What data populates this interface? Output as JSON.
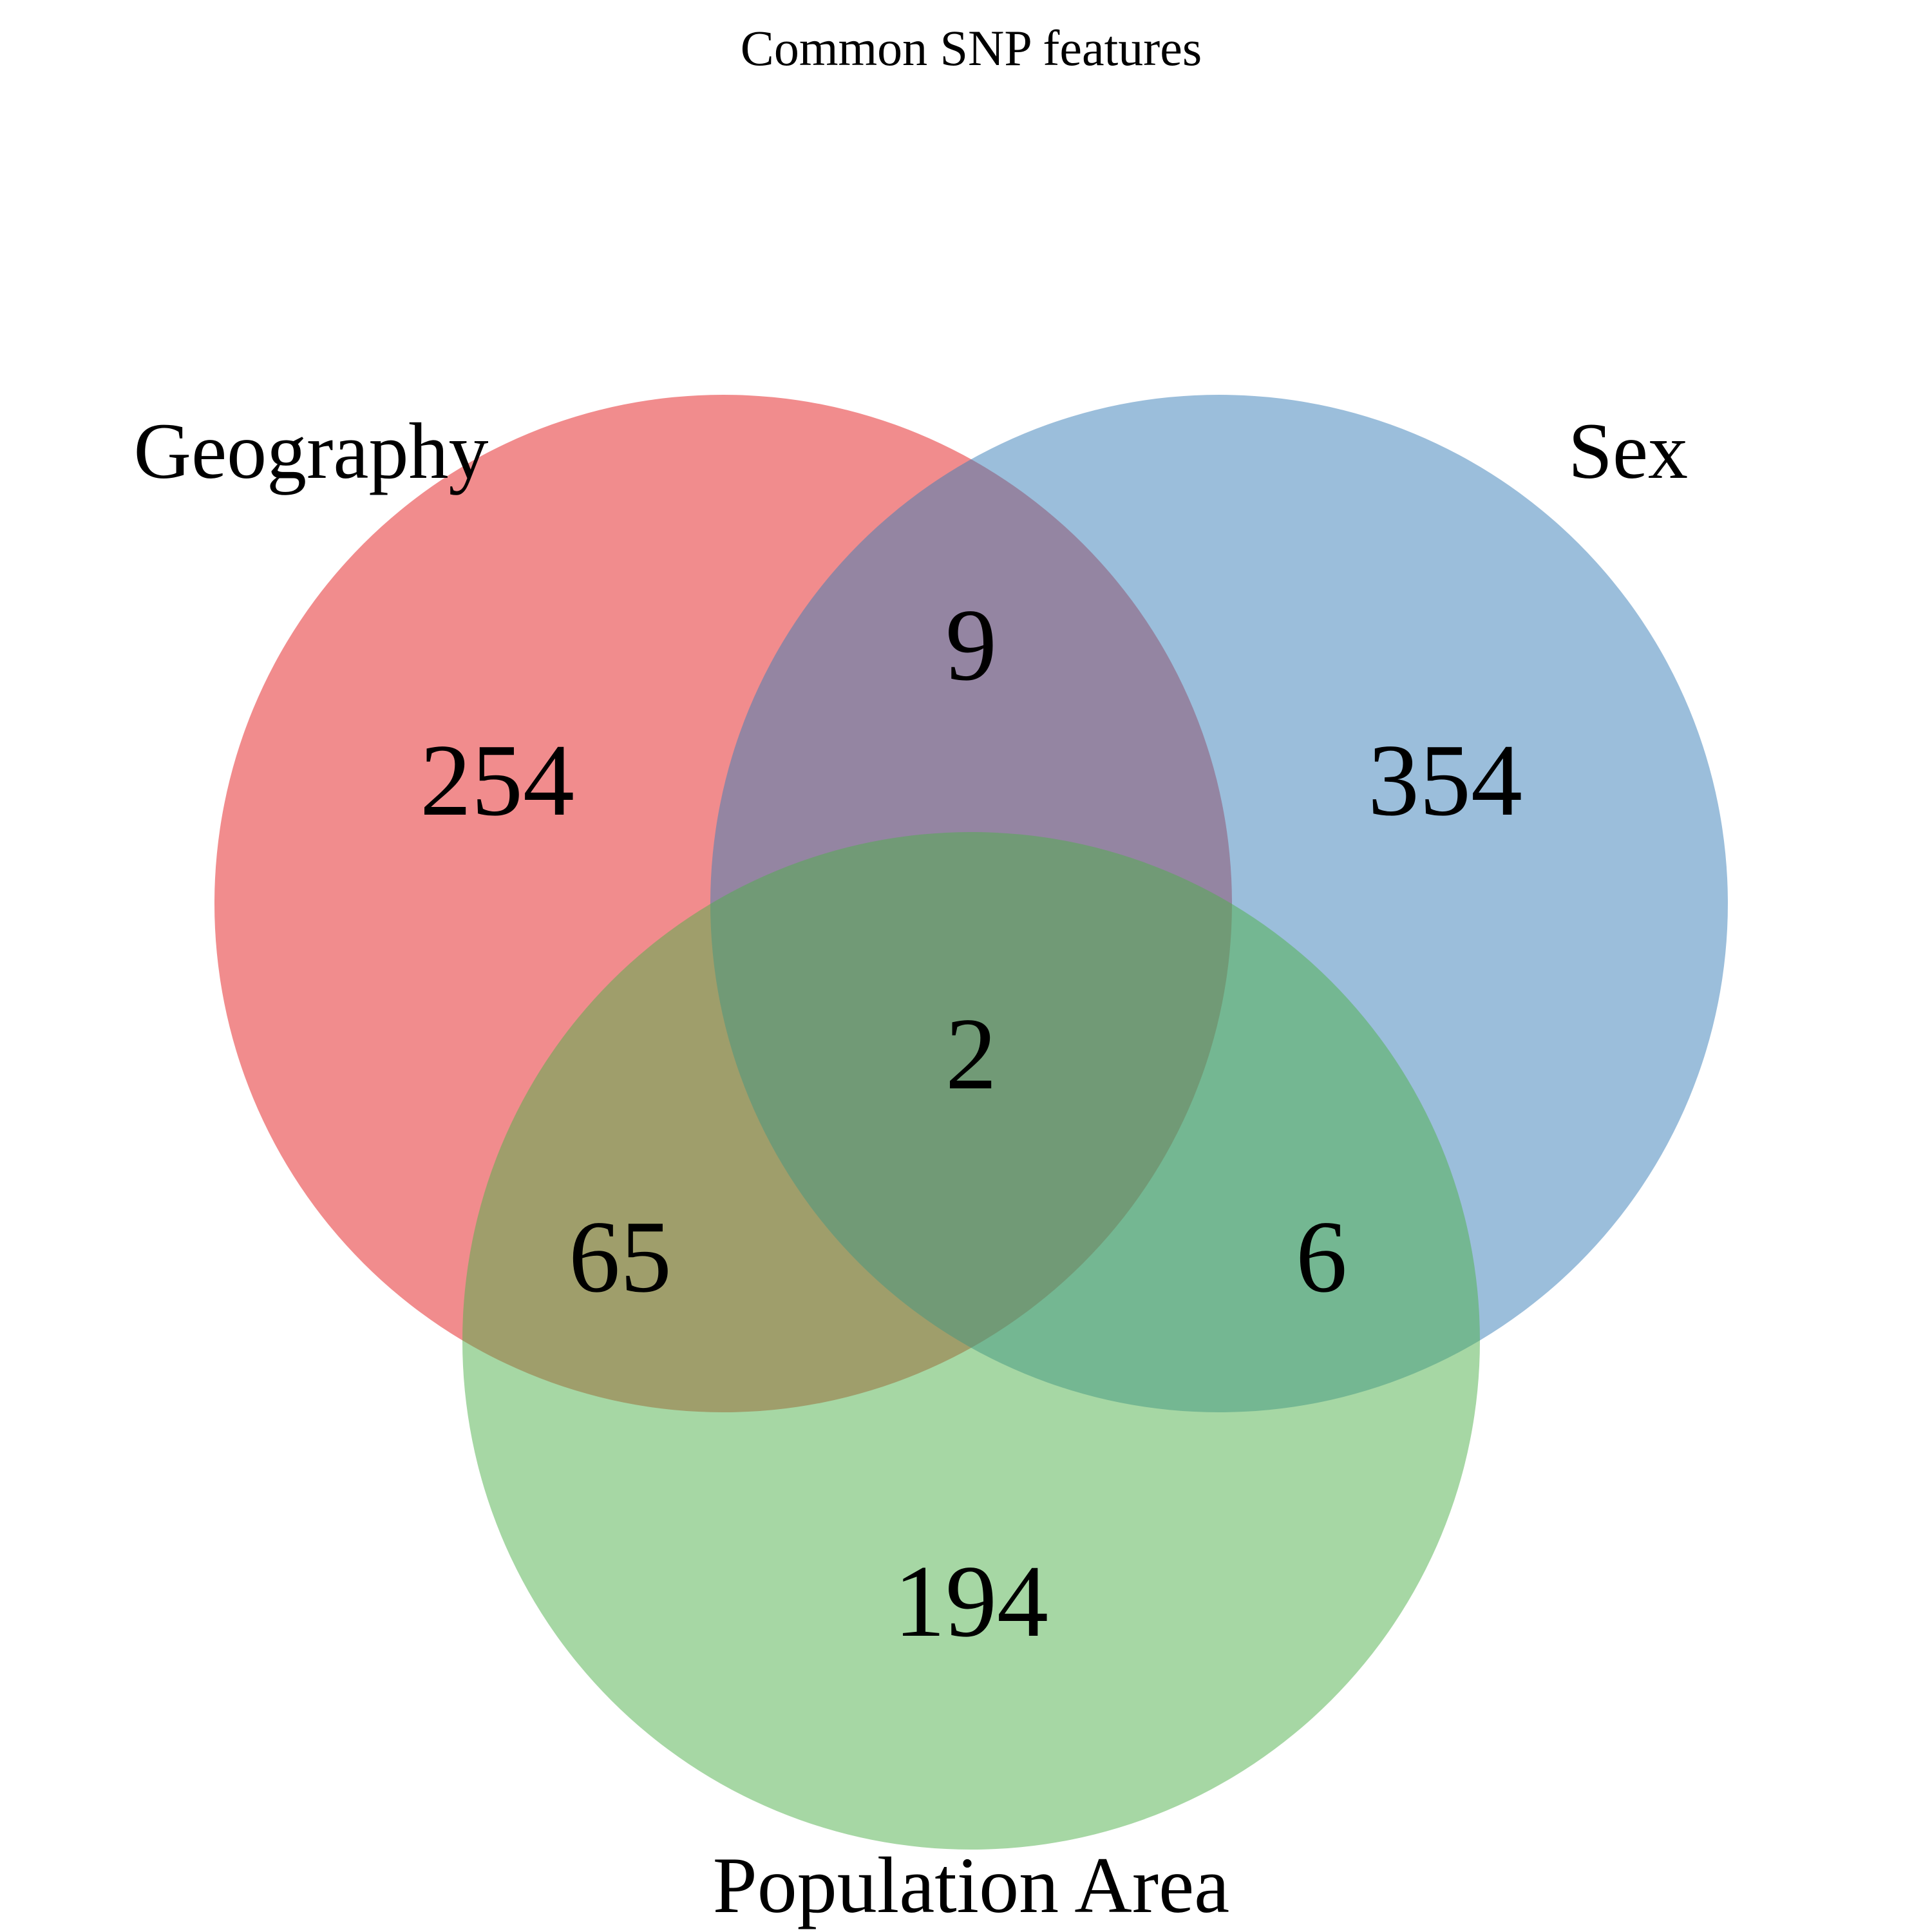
{
  "title": "Common SNP features",
  "sets": [
    {
      "id": "geo",
      "label": "Geography",
      "color": "#E41A1C"
    },
    {
      "id": "sex",
      "label": "Sex",
      "color": "#377EB8"
    },
    {
      "id": "pop",
      "label": "Population Area",
      "color": "#4DAF4A"
    }
  ],
  "fill_opacity": 0.5,
  "counts": {
    "geo_only": "254",
    "sex_only": "354",
    "pop_only": "194",
    "geo_sex": "9",
    "geo_pop": "65",
    "sex_pop": "6",
    "all": "2"
  }
}
